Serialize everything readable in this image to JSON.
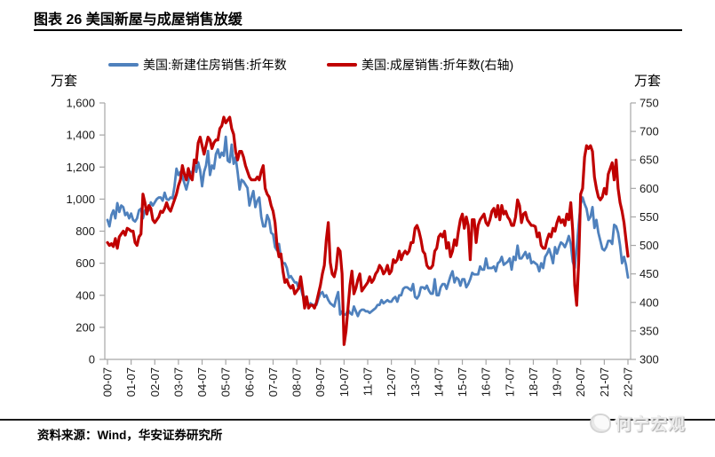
{
  "title": "图表 26 美国新屋与成屋销售放缓",
  "footer": {
    "source": "资料来源：Wind，华安证券研究所",
    "watermark": "何宁宏观"
  },
  "chart_data": {
    "type": "line",
    "frequency": "monthly",
    "x_start": "00-07",
    "x_end": "22-07",
    "x_tick_labels": [
      "00-07",
      "01-07",
      "02-07",
      "03-07",
      "04-07",
      "05-07",
      "06-07",
      "07-07",
      "08-07",
      "09-07",
      "10-07",
      "11-07",
      "12-07",
      "13-07",
      "14-07",
      "15-07",
      "16-07",
      "17-07",
      "18-07",
      "19-07",
      "20-07",
      "21-07",
      "22-07"
    ],
    "left_axis": {
      "label": "万套",
      "min": 0,
      "max": 1600,
      "tick_step": 200,
      "tick_labels": [
        "0",
        "200",
        "400",
        "600",
        "800",
        "1,000",
        "1,200",
        "1,400",
        "1,600"
      ]
    },
    "right_axis": {
      "label": "万套",
      "min": 300,
      "max": 750,
      "tick_step": 50,
      "tick_labels": [
        "300",
        "350",
        "400",
        "450",
        "500",
        "550",
        "600",
        "650",
        "700",
        "750"
      ]
    },
    "grid": false,
    "legend_position": "top",
    "axis_color": "#a6a6a6",
    "tick_text_color": "#1a1a1a",
    "series": [
      {
        "name": "美国:新建住房销售:折年数",
        "axis": "left",
        "color": "#4F81BD",
        "line_width": 2.8,
        "values": [
          870,
          830,
          900,
          930,
          880,
          975,
          920,
          960,
          950,
          900,
          915,
          880,
          910,
          870,
          860,
          880,
          930,
          940,
          880,
          930,
          935,
          930,
          980,
          960,
          980,
          1000,
          1010,
          1010,
          990,
          1040,
          1000,
          995,
          1010,
          1005,
          1080,
          1190,
          1150,
          1170,
          1140,
          1100,
          1060,
          1110,
          1170,
          1160,
          1230,
          1170,
          1230,
          1180,
          1080,
          1170,
          1210,
          1300,
          1150,
          1210,
          1190,
          1280,
          1310,
          1260,
          1290,
          1270,
          1389,
          1240,
          1230,
          1340,
          1220,
          1260,
          1170,
          1060,
          1120,
          1110,
          1090,
          1070,
          960,
          1010,
          1050,
          950,
          990,
          1010,
          890,
          830,
          830,
          900,
          870,
          790,
          780,
          700,
          680,
          720,
          630,
          600,
          600,
          570,
          510,
          520,
          500,
          480,
          480,
          440,
          450,
          400,
          390,
          370,
          330,
          350,
          340,
          340,
          340,
          380,
          410,
          420,
          390,
          400,
          370,
          350,
          340,
          330,
          380,
          420,
          280,
          300,
          280,
          280,
          310,
          290,
          280,
          330,
          300,
          270,
          300,
          310,
          310,
          300,
          300,
          290,
          300,
          310,
          320,
          340,
          340,
          370,
          350,
          360,
          370,
          360,
          360,
          380,
          390,
          360,
          400,
          400,
          440,
          450,
          450,
          440,
          430,
          470,
          390,
          380,
          400,
          450,
          450,
          440,
          460,
          430,
          410,
          410,
          500,
          400,
          400,
          450,
          470,
          470,
          440,
          480,
          520,
          550,
          480,
          510,
          500,
          460,
          500,
          500,
          450,
          470,
          500,
          540,
          530,
          530,
          530,
          580,
          560,
          560,
          630,
          570,
          570,
          570,
          580,
          550,
          600,
          610,
          640,
          590,
          600,
          610,
          630,
          560,
          640,
          620,
          710,
          630,
          630,
          650,
          670,
          630,
          660,
          600,
          610,
          600,
          590,
          550,
          600,
          570,
          640,
          660,
          690,
          650,
          600,
          700,
          660,
          700,
          730,
          720,
          700,
          730,
          770,
          720,
          610,
          570,
          700,
          840,
          970,
          1010,
          970,
          940,
          870,
          890,
          950,
          820,
          870,
          790,
          740,
          690,
          680,
          700,
          740,
          740,
          720,
          840,
          830,
          790,
          710,
          600,
          640,
          590,
          511
        ]
      },
      {
        "name": "美国:成屋销售:折年数(右轴)",
        "axis": "right",
        "color": "#C00000",
        "line_width": 3.2,
        "values": [
          505,
          500,
          503,
          498,
          512,
          495,
          515,
          520,
          525,
          518,
          530,
          528,
          525,
          525,
          505,
          500,
          515,
          520,
          590,
          575,
          555,
          570,
          565,
          545,
          540,
          545,
          550,
          560,
          558,
          565,
          575,
          565,
          560,
          570,
          580,
          590,
          605,
          615,
          640,
          625,
          615,
          635,
          620,
          615,
          650,
          645,
          680,
          690,
          675,
          660,
          675,
          690,
          685,
          670,
          680,
          685,
          685,
          705,
          710,
          725,
          715,
          720,
          725,
          705,
          695,
          665,
          650,
          665,
          665,
          655,
          640,
          630,
          620,
          615,
          615,
          615,
          620,
          615,
          630,
          640,
          600,
          590,
          585,
          570,
          560,
          540,
          500,
          480,
          485,
          455,
          435,
          440,
          430,
          425,
          430,
          415,
          420,
          425,
          445,
          420,
          390,
          410,
          390,
          395,
          395,
          390,
          400,
          415,
          430,
          450,
          465,
          510,
          540,
          470,
          450,
          445,
          460,
          495,
          490,
          450,
          326,
          350,
          390,
          430,
          455,
          415,
          425,
          440,
          450,
          420,
          425,
          430,
          435,
          445,
          435,
          440,
          450,
          455,
          465,
          460,
          450,
          455,
          465,
          450,
          455,
          475,
          470,
          475,
          490,
          475,
          485,
          490,
          485,
          490,
          505,
          505,
          530,
          535,
          525,
          510,
          490,
          485,
          465,
          460,
          460,
          465,
          490,
          495,
          515,
          520,
          515,
          525,
          495,
          505,
          480,
          490,
          510,
          500,
          525,
          545,
          555,
          530,
          550,
          535,
          475,
          545,
          545,
          505,
          535,
          545,
          550,
          555,
          540,
          535,
          545,
          560,
          565,
          550,
          570,
          545,
          570,
          555,
          560,
          550,
          545,
          535,
          535,
          550,
          580,
          570,
          540,
          555,
          558,
          545,
          540,
          535,
          535,
          533,
          515,
          522,
          500,
          495,
          495,
          510,
          520,
          515,
          530,
          525,
          540,
          550,
          540,
          545,
          535,
          555,
          545,
          575,
          525,
          430,
          395,
          470,
          590,
          600,
          655,
          675,
          670,
          675,
          665,
          620,
          600,
          585,
          580,
          585,
          600,
          590,
          625,
          635,
          645,
          615,
          650,
          600,
          575,
          560,
          540,
          510,
          481
        ]
      }
    ]
  }
}
